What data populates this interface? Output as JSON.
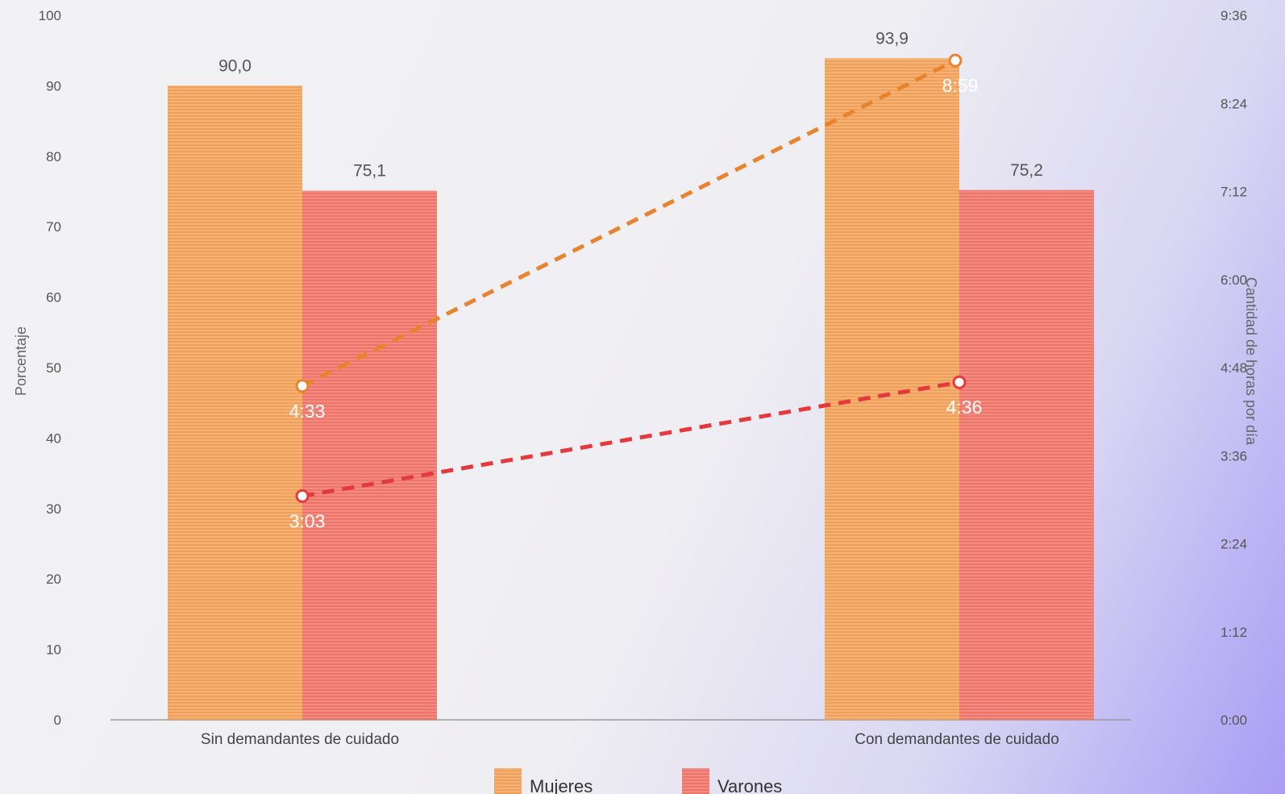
{
  "chart_data": {
    "type": "bar",
    "categories": [
      "Sin demandantes de cuidado",
      "Con demandantes de cuidado"
    ],
    "series": [
      {
        "name": "Mujeres",
        "values": [
          90.0,
          93.9
        ],
        "labels": [
          "90,0",
          "93,9"
        ],
        "color": "#f0a05a"
      },
      {
        "name": "Varones",
        "values": [
          75.1,
          75.2
        ],
        "labels": [
          "75,1",
          "75,2"
        ],
        "color": "#ee7468"
      }
    ],
    "lines": [
      {
        "series": "Mujeres",
        "values_minutes": [
          273,
          539
        ],
        "labels": [
          "4:33",
          "8:59"
        ],
        "color": "#e8832e",
        "style": "dashed"
      },
      {
        "series": "Varones",
        "values_minutes": [
          183,
          276
        ],
        "labels": [
          "3:03",
          "4:36"
        ],
        "color": "#e5393d",
        "style": "dashed"
      }
    ],
    "ylabel": "Porcentaje",
    "ylim": [
      0,
      100
    ],
    "yticks": [
      "0",
      "10",
      "20",
      "30",
      "40",
      "50",
      "60",
      "70",
      "80",
      "90",
      "100"
    ],
    "y2label": "Cantidad de horas por día",
    "y2lim_minutes": [
      0,
      576
    ],
    "y2ticks": [
      "0:00",
      "1:12",
      "2:24",
      "3:36",
      "4:48",
      "6:00",
      "7:12",
      "8:24",
      "9:36"
    ],
    "legend": {
      "position": "bottom-center"
    },
    "grid": false
  }
}
